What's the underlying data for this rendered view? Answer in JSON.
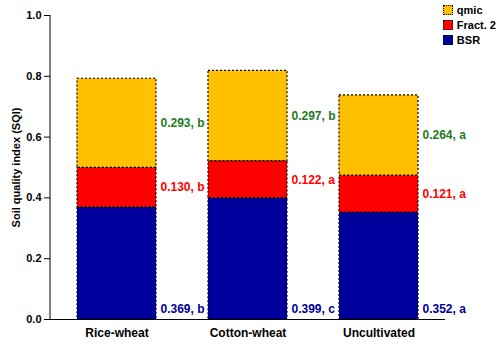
{
  "chart_data": {
    "type": "bar",
    "categories": [
      "Rice-wheat",
      "Cotton-wheat",
      "Uncultivated"
    ],
    "ylabel": "Soil quality index (SQI)",
    "ylim": [
      0,
      1
    ],
    "yticks": [
      {
        "value": 0,
        "label": "0.0"
      },
      {
        "value": 0.2,
        "label": "0.2"
      },
      {
        "value": 0.4,
        "label": "0.4"
      },
      {
        "value": 0.6,
        "label": "0.6"
      },
      {
        "value": 0.8,
        "label": "0.8"
      },
      {
        "value": 1,
        "label": "1.0"
      }
    ],
    "stacked": true,
    "data_labels": true,
    "legend": "top-right",
    "series": [
      {
        "name": "BSR",
        "color": "#00009c",
        "values": [
          0.369,
          0.399,
          0.352
        ],
        "value_labels": [
          "0.369, b",
          "0.399, c",
          "0.352, a"
        ]
      },
      {
        "name": "Fract. 2",
        "color": "#ff0000",
        "values": [
          0.13,
          0.122,
          0.121
        ],
        "value_labels": [
          "0.130, b",
          "0.122, a",
          "0.121, a"
        ]
      },
      {
        "name": "qmic",
        "color": "#ffc000",
        "values": [
          0.293,
          0.297,
          0.264
        ],
        "value_labels": [
          "0.293, b",
          "0.297, b",
          "0.264, a"
        ]
      }
    ]
  }
}
